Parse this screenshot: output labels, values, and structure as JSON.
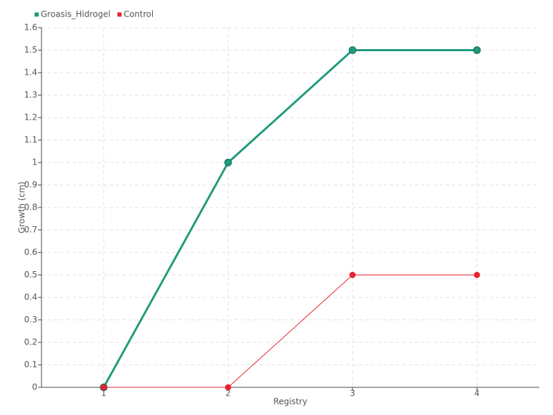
{
  "chart_data": {
    "type": "line",
    "x_label": "Registry",
    "y_label": "Growth (cm)",
    "categories": [
      "1",
      "2",
      "3",
      "4"
    ],
    "series": [
      {
        "name": "Groasis_Hidrogel",
        "color": "#1f9a7c",
        "values": [
          0,
          1,
          1.5,
          1.5
        ]
      },
      {
        "name": "Control",
        "color": "#e8232f",
        "values": [
          0,
          0,
          0.5,
          0.5
        ]
      }
    ],
    "ylim": [
      0,
      1.6
    ],
    "yticks": [
      0,
      0.1,
      0.2,
      0.3,
      0.4,
      0.5,
      0.6,
      0.7,
      0.8,
      0.9,
      1,
      1.1,
      1.2,
      1.3,
      1.4,
      1.5,
      1.6
    ],
    "grid": true,
    "legend": "top-left"
  }
}
